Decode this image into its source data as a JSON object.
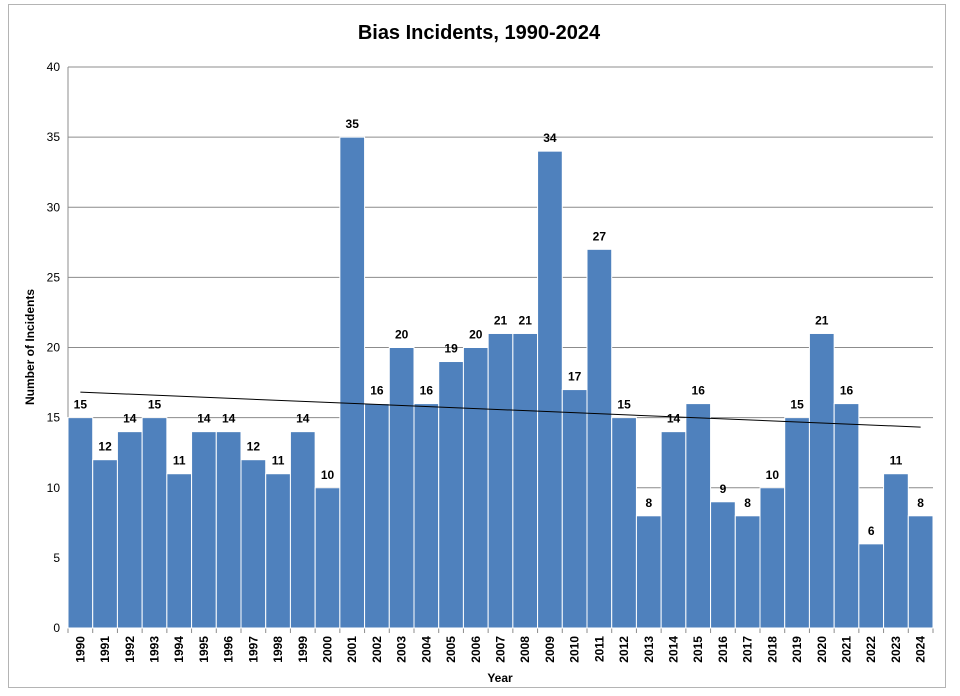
{
  "chart_data": {
    "type": "bar",
    "title": "Bias Incidents, 1990-2024",
    "xlabel": "Year",
    "ylabel": "Number of Incidents",
    "ylim": [
      0,
      40
    ],
    "yticks": [
      0,
      5,
      10,
      15,
      20,
      25,
      30,
      35,
      40
    ],
    "grid": true,
    "legend": "none",
    "trendline": "linear",
    "categories": [
      "1990",
      "1991",
      "1992",
      "1993",
      "1994",
      "1995",
      "1996",
      "1997",
      "1998",
      "1999",
      "2000",
      "2001",
      "2002",
      "2003",
      "2004",
      "2005",
      "2006",
      "2007",
      "2008",
      "2009",
      "2010",
      "2011",
      "2012",
      "2013",
      "2014",
      "2015",
      "2016",
      "2017",
      "2018",
      "2019",
      "2020",
      "2021",
      "2022",
      "2023",
      "2024"
    ],
    "values": [
      15,
      12,
      14,
      15,
      11,
      14,
      14,
      12,
      11,
      14,
      10,
      35,
      16,
      20,
      16,
      19,
      20,
      21,
      21,
      34,
      17,
      27,
      15,
      8,
      14,
      16,
      9,
      8,
      10,
      15,
      21,
      16,
      6,
      11,
      8
    ],
    "colors": {
      "bar": "#4f81bd",
      "bar_edge": "#ffffff",
      "grid": "#8c8c8c",
      "axis": "#8c8c8c",
      "trend": "#000000"
    }
  }
}
